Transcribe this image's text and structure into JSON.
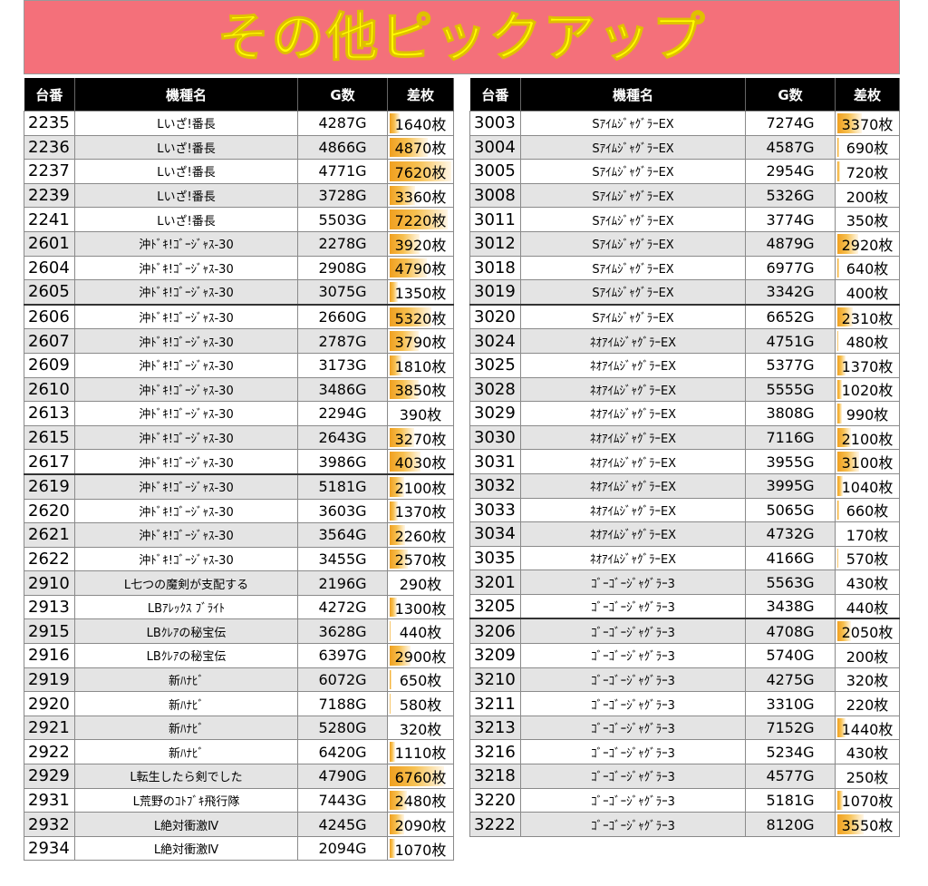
{
  "banner": {
    "title": "その他ピックアップ"
  },
  "headers": {
    "unit": "台番",
    "machine": "機種名",
    "games": "G数",
    "coins": "差枚"
  },
  "max_coins": 7620,
  "left_table": [
    {
      "no": "2235",
      "name": "Lいざ!番長",
      "games": "4287G",
      "coins": "1640枚",
      "v": 1640,
      "shade": false,
      "sep": false
    },
    {
      "no": "2236",
      "name": "Lいざ!番長",
      "games": "4866G",
      "coins": "4870枚",
      "v": 4870,
      "shade": true,
      "sep": false
    },
    {
      "no": "2237",
      "name": "Lいざ!番長",
      "games": "4771G",
      "coins": "7620枚",
      "v": 7620,
      "shade": false,
      "sep": false
    },
    {
      "no": "2239",
      "name": "Lいざ!番長",
      "games": "3728G",
      "coins": "3360枚",
      "v": 3360,
      "shade": true,
      "sep": false
    },
    {
      "no": "2241",
      "name": "Lいざ!番長",
      "games": "5503G",
      "coins": "7220枚",
      "v": 7220,
      "shade": false,
      "sep": false
    },
    {
      "no": "2601",
      "name": "沖ﾄﾞｷ!ｺﾞｰｼﾞｬｽ-30",
      "games": "2278G",
      "coins": "3920枚",
      "v": 3920,
      "shade": true,
      "sep": false
    },
    {
      "no": "2604",
      "name": "沖ﾄﾞｷ!ｺﾞｰｼﾞｬｽ-30",
      "games": "2908G",
      "coins": "4790枚",
      "v": 4790,
      "shade": false,
      "sep": false
    },
    {
      "no": "2605",
      "name": "沖ﾄﾞｷ!ｺﾞｰｼﾞｬｽ-30",
      "games": "3075G",
      "coins": "1350枚",
      "v": 1350,
      "shade": true,
      "sep": false
    },
    {
      "no": "2606",
      "name": "沖ﾄﾞｷ!ｺﾞｰｼﾞｬｽ-30",
      "games": "2660G",
      "coins": "5320枚",
      "v": 5320,
      "shade": false,
      "sep": true
    },
    {
      "no": "2607",
      "name": "沖ﾄﾞｷ!ｺﾞｰｼﾞｬｽ-30",
      "games": "2787G",
      "coins": "3790枚",
      "v": 3790,
      "shade": true,
      "sep": false
    },
    {
      "no": "2609",
      "name": "沖ﾄﾞｷ!ｺﾞｰｼﾞｬｽ-30",
      "games": "3173G",
      "coins": "1810枚",
      "v": 1810,
      "shade": false,
      "sep": false
    },
    {
      "no": "2610",
      "name": "沖ﾄﾞｷ!ｺﾞｰｼﾞｬｽ-30",
      "games": "3486G",
      "coins": "3850枚",
      "v": 3850,
      "shade": true,
      "sep": false
    },
    {
      "no": "2613",
      "name": "沖ﾄﾞｷ!ｺﾞｰｼﾞｬｽ-30",
      "games": "2294G",
      "coins": "390枚",
      "v": 390,
      "shade": false,
      "sep": false
    },
    {
      "no": "2615",
      "name": "沖ﾄﾞｷ!ｺﾞｰｼﾞｬｽ-30",
      "games": "2643G",
      "coins": "3270枚",
      "v": 3270,
      "shade": true,
      "sep": false
    },
    {
      "no": "2617",
      "name": "沖ﾄﾞｷ!ｺﾞｰｼﾞｬｽ-30",
      "games": "3986G",
      "coins": "4030枚",
      "v": 4030,
      "shade": false,
      "sep": false
    },
    {
      "no": "2619",
      "name": "沖ﾄﾞｷ!ｺﾞｰｼﾞｬｽ-30",
      "games": "5181G",
      "coins": "2100枚",
      "v": 2100,
      "shade": true,
      "sep": true
    },
    {
      "no": "2620",
      "name": "沖ﾄﾞｷ!ｺﾞｰｼﾞｬｽ-30",
      "games": "3603G",
      "coins": "1370枚",
      "v": 1370,
      "shade": false,
      "sep": false
    },
    {
      "no": "2621",
      "name": "沖ﾄﾞｷ!ｺﾞｰｼﾞｬｽ-30",
      "games": "3564G",
      "coins": "2260枚",
      "v": 2260,
      "shade": true,
      "sep": false
    },
    {
      "no": "2622",
      "name": "沖ﾄﾞｷ!ｺﾞｰｼﾞｬｽ-30",
      "games": "3455G",
      "coins": "2570枚",
      "v": 2570,
      "shade": false,
      "sep": false
    },
    {
      "no": "2910",
      "name": "L七つの魔剣が支配する",
      "games": "2196G",
      "coins": "290枚",
      "v": 290,
      "shade": true,
      "sep": false
    },
    {
      "no": "2913",
      "name": "LBｱﾚｯｸｽ ﾌﾞﾗｲﾄ",
      "games": "4272G",
      "coins": "1300枚",
      "v": 1300,
      "shade": false,
      "sep": false
    },
    {
      "no": "2915",
      "name": "LBｸﾚｱの秘宝伝",
      "games": "3628G",
      "coins": "440枚",
      "v": 440,
      "shade": true,
      "sep": false
    },
    {
      "no": "2916",
      "name": "LBｸﾚｱの秘宝伝",
      "games": "6397G",
      "coins": "2900枚",
      "v": 2900,
      "shade": false,
      "sep": false
    },
    {
      "no": "2919",
      "name": "新ﾊﾅﾋﾞ",
      "games": "6072G",
      "coins": "650枚",
      "v": 650,
      "shade": true,
      "sep": false
    },
    {
      "no": "2920",
      "name": "新ﾊﾅﾋﾞ",
      "games": "7188G",
      "coins": "580枚",
      "v": 580,
      "shade": false,
      "sep": false
    },
    {
      "no": "2921",
      "name": "新ﾊﾅﾋﾞ",
      "games": "5280G",
      "coins": "320枚",
      "v": 320,
      "shade": true,
      "sep": false
    },
    {
      "no": "2922",
      "name": "新ﾊﾅﾋﾞ",
      "games": "6420G",
      "coins": "1110枚",
      "v": 1110,
      "shade": false,
      "sep": false
    },
    {
      "no": "2929",
      "name": "L転生したら剣でした",
      "games": "4790G",
      "coins": "6760枚",
      "v": 6760,
      "shade": true,
      "sep": false
    },
    {
      "no": "2931",
      "name": "L荒野のｺﾄﾌﾞｷ飛行隊",
      "games": "7443G",
      "coins": "2480枚",
      "v": 2480,
      "shade": false,
      "sep": false
    },
    {
      "no": "2932",
      "name": "L絶対衝激Ⅳ",
      "games": "4245G",
      "coins": "2090枚",
      "v": 2090,
      "shade": true,
      "sep": false
    },
    {
      "no": "2934",
      "name": "L絶対衝激Ⅳ",
      "games": "2094G",
      "coins": "1070枚",
      "v": 1070,
      "shade": false,
      "sep": false
    }
  ],
  "right_table": [
    {
      "no": "3003",
      "name": "SｱｲﾑｼﾞｬｸﾞﾗｰEX",
      "games": "7274G",
      "coins": "3370枚",
      "v": 3370,
      "shade": false,
      "sep": false
    },
    {
      "no": "3004",
      "name": "SｱｲﾑｼﾞｬｸﾞﾗｰEX",
      "games": "4587G",
      "coins": "690枚",
      "v": 690,
      "shade": true,
      "sep": false
    },
    {
      "no": "3005",
      "name": "SｱｲﾑｼﾞｬｸﾞﾗｰEX",
      "games": "2954G",
      "coins": "720枚",
      "v": 720,
      "shade": false,
      "sep": false
    },
    {
      "no": "3008",
      "name": "SｱｲﾑｼﾞｬｸﾞﾗｰEX",
      "games": "5326G",
      "coins": "200枚",
      "v": 200,
      "shade": true,
      "sep": false
    },
    {
      "no": "3011",
      "name": "SｱｲﾑｼﾞｬｸﾞﾗｰEX",
      "games": "3774G",
      "coins": "350枚",
      "v": 350,
      "shade": false,
      "sep": false
    },
    {
      "no": "3012",
      "name": "SｱｲﾑｼﾞｬｸﾞﾗｰEX",
      "games": "4879G",
      "coins": "2920枚",
      "v": 2920,
      "shade": true,
      "sep": false
    },
    {
      "no": "3018",
      "name": "SｱｲﾑｼﾞｬｸﾞﾗｰEX",
      "games": "6977G",
      "coins": "640枚",
      "v": 640,
      "shade": false,
      "sep": false
    },
    {
      "no": "3019",
      "name": "SｱｲﾑｼﾞｬｸﾞﾗｰEX",
      "games": "3342G",
      "coins": "400枚",
      "v": 400,
      "shade": true,
      "sep": false
    },
    {
      "no": "3020",
      "name": "SｱｲﾑｼﾞｬｸﾞﾗｰEX",
      "games": "6652G",
      "coins": "2310枚",
      "v": 2310,
      "shade": false,
      "sep": true
    },
    {
      "no": "3024",
      "name": "ﾈｵｱｲﾑｼﾞｬｸﾞﾗｰEX",
      "games": "4751G",
      "coins": "480枚",
      "v": 480,
      "shade": true,
      "sep": false
    },
    {
      "no": "3025",
      "name": "ﾈｵｱｲﾑｼﾞｬｸﾞﾗｰEX",
      "games": "5377G",
      "coins": "1370枚",
      "v": 1370,
      "shade": false,
      "sep": false
    },
    {
      "no": "3028",
      "name": "ﾈｵｱｲﾑｼﾞｬｸﾞﾗｰEX",
      "games": "5555G",
      "coins": "1020枚",
      "v": 1020,
      "shade": true,
      "sep": false
    },
    {
      "no": "3029",
      "name": "ﾈｵｱｲﾑｼﾞｬｸﾞﾗｰEX",
      "games": "3808G",
      "coins": "990枚",
      "v": 990,
      "shade": false,
      "sep": false
    },
    {
      "no": "3030",
      "name": "ﾈｵｱｲﾑｼﾞｬｸﾞﾗｰEX",
      "games": "7116G",
      "coins": "2100枚",
      "v": 2100,
      "shade": true,
      "sep": false
    },
    {
      "no": "3031",
      "name": "ﾈｵｱｲﾑｼﾞｬｸﾞﾗｰEX",
      "games": "3955G",
      "coins": "3100枚",
      "v": 3100,
      "shade": false,
      "sep": false
    },
    {
      "no": "3032",
      "name": "ﾈｵｱｲﾑｼﾞｬｸﾞﾗｰEX",
      "games": "3995G",
      "coins": "1040枚",
      "v": 1040,
      "shade": true,
      "sep": false
    },
    {
      "no": "3033",
      "name": "ﾈｵｱｲﾑｼﾞｬｸﾞﾗｰEX",
      "games": "5065G",
      "coins": "660枚",
      "v": 660,
      "shade": false,
      "sep": false
    },
    {
      "no": "3034",
      "name": "ﾈｵｱｲﾑｼﾞｬｸﾞﾗｰEX",
      "games": "4732G",
      "coins": "170枚",
      "v": 170,
      "shade": true,
      "sep": false
    },
    {
      "no": "3035",
      "name": "ﾈｵｱｲﾑｼﾞｬｸﾞﾗｰEX",
      "games": "4166G",
      "coins": "570枚",
      "v": 570,
      "shade": false,
      "sep": false
    },
    {
      "no": "3201",
      "name": "ｺﾞｰｺﾞｰｼﾞｬｸﾞﾗｰ3",
      "games": "5563G",
      "coins": "430枚",
      "v": 430,
      "shade": true,
      "sep": false
    },
    {
      "no": "3205",
      "name": "ｺﾞｰｺﾞｰｼﾞｬｸﾞﾗｰ3",
      "games": "3438G",
      "coins": "440枚",
      "v": 440,
      "shade": false,
      "sep": false
    },
    {
      "no": "3206",
      "name": "ｺﾞｰｺﾞｰｼﾞｬｸﾞﾗｰ3",
      "games": "4708G",
      "coins": "2050枚",
      "v": 2050,
      "shade": true,
      "sep": true
    },
    {
      "no": "3209",
      "name": "ｺﾞｰｺﾞｰｼﾞｬｸﾞﾗｰ3",
      "games": "5740G",
      "coins": "200枚",
      "v": 200,
      "shade": false,
      "sep": false
    },
    {
      "no": "3210",
      "name": "ｺﾞｰｺﾞｰｼﾞｬｸﾞﾗｰ3",
      "games": "4275G",
      "coins": "320枚",
      "v": 320,
      "shade": true,
      "sep": false
    },
    {
      "no": "3211",
      "name": "ｺﾞｰｺﾞｰｼﾞｬｸﾞﾗｰ3",
      "games": "3310G",
      "coins": "220枚",
      "v": 220,
      "shade": false,
      "sep": false
    },
    {
      "no": "3213",
      "name": "ｺﾞｰｺﾞｰｼﾞｬｸﾞﾗｰ3",
      "games": "7152G",
      "coins": "1440枚",
      "v": 1440,
      "shade": true,
      "sep": false
    },
    {
      "no": "3216",
      "name": "ｺﾞｰｺﾞｰｼﾞｬｸﾞﾗｰ3",
      "games": "5234G",
      "coins": "430枚",
      "v": 430,
      "shade": false,
      "sep": false
    },
    {
      "no": "3218",
      "name": "ｺﾞｰｺﾞｰｼﾞｬｸﾞﾗｰ3",
      "games": "4577G",
      "coins": "250枚",
      "v": 250,
      "shade": true,
      "sep": false
    },
    {
      "no": "3220",
      "name": "ｺﾞｰｺﾞｰｼﾞｬｸﾞﾗｰ3",
      "games": "5181G",
      "coins": "1070枚",
      "v": 1070,
      "shade": false,
      "sep": false
    },
    {
      "no": "3222",
      "name": "ｺﾞｰｺﾞｰｼﾞｬｸﾞﾗｰ3",
      "games": "8120G",
      "coins": "3550枚",
      "v": 3550,
      "shade": true,
      "sep": false
    }
  ]
}
